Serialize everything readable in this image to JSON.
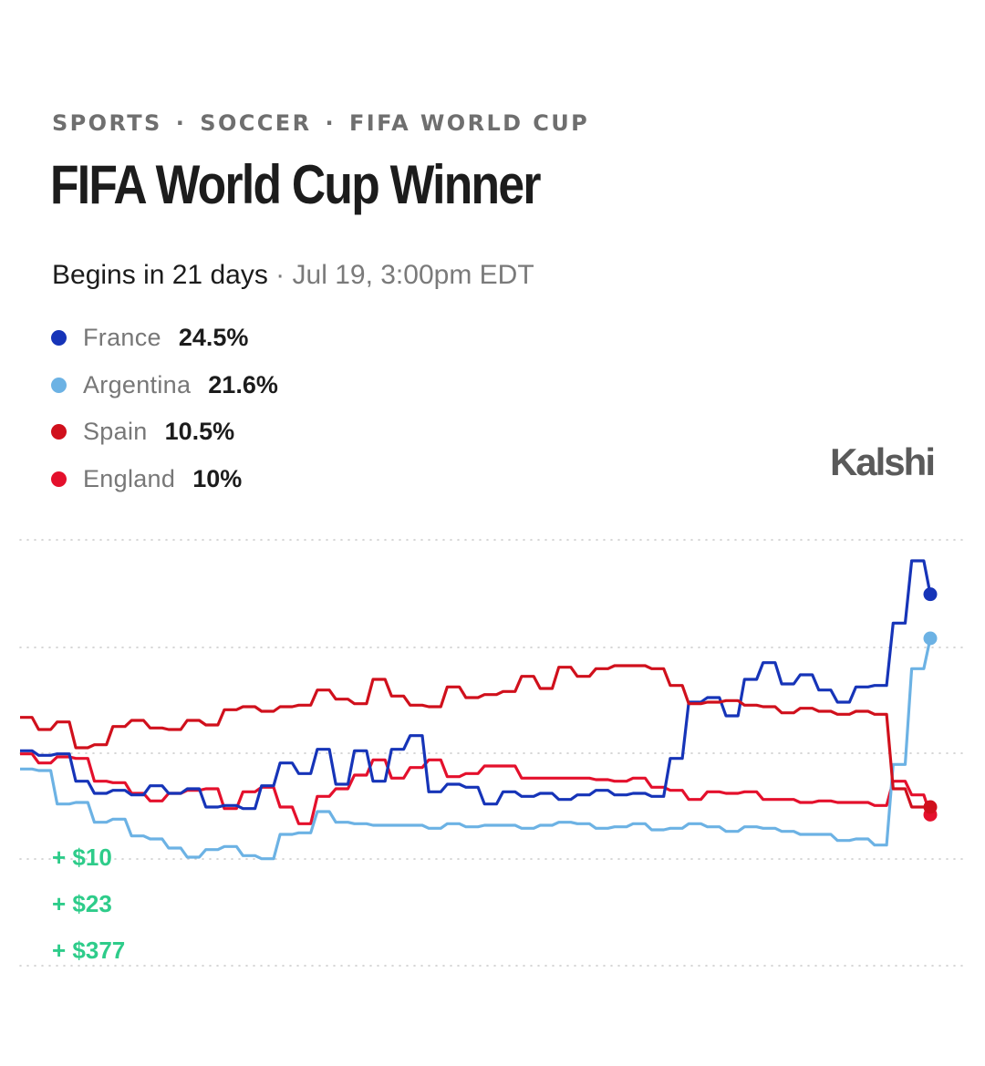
{
  "breadcrumb": [
    "SPORTS",
    "SOCCER",
    "FIFA WORLD CUP"
  ],
  "title": "FIFA World Cup Winner",
  "schedule": {
    "begins": "Begins in 21 days",
    "separator": "·",
    "date": "Jul 19, 3:00pm EDT"
  },
  "brand": "Kalshi",
  "legend": [
    {
      "name": "France",
      "value": "24.5%",
      "color": "#1634b8"
    },
    {
      "name": "Argentina",
      "value": "21.6%",
      "color": "#6cb2e4"
    },
    {
      "name": "Spain",
      "value": "10.5%",
      "color": "#d0101c"
    },
    {
      "name": "England",
      "value": "10%",
      "color": "#e4102c"
    }
  ],
  "pnl": [
    "+ $10",
    "+ $23",
    "+ $377"
  ],
  "chart_data": {
    "type": "line",
    "grid": true,
    "ylim": [
      0,
      30
    ],
    "series": [
      {
        "name": "France",
        "color": "#1634b8",
        "values": [
          14.2,
          13.9,
          14.0,
          12.2,
          11.4,
          11.6,
          11.3,
          11.9,
          11.4,
          11.7,
          10.5,
          10.6,
          10.4,
          11.9,
          13.4,
          12.7,
          14.3,
          12.0,
          14.2,
          12.2,
          14.3,
          15.2,
          11.5,
          12.0,
          11.8,
          10.7,
          11.5,
          11.2,
          11.4,
          11.0,
          11.3,
          11.6,
          11.3,
          11.4,
          11.2,
          13.7,
          17.4,
          17.7,
          16.5,
          18.9,
          20.0,
          18.6,
          19.2,
          18.2,
          17.4,
          18.4,
          18.5,
          22.6,
          26.7,
          24.5
        ]
      },
      {
        "name": "Argentina",
        "color": "#6cb2e4",
        "values": [
          13.0,
          12.9,
          10.7,
          10.8,
          9.5,
          9.7,
          8.6,
          8.4,
          7.8,
          7.2,
          7.7,
          7.9,
          7.3,
          7.1,
          8.7,
          8.8,
          10.2,
          9.5,
          9.4,
          9.3,
          9.3,
          9.3,
          9.1,
          9.4,
          9.2,
          9.3,
          9.3,
          9.1,
          9.3,
          9.5,
          9.4,
          9.1,
          9.2,
          9.4,
          9.0,
          9.1,
          9.4,
          9.2,
          8.9,
          9.2,
          9.1,
          8.9,
          8.7,
          8.7,
          8.3,
          8.4,
          8.0,
          13.3,
          19.6,
          21.6
        ]
      },
      {
        "name": "Spain",
        "color": "#d0101c",
        "values": [
          16.4,
          15.6,
          16.1,
          14.4,
          14.6,
          15.8,
          16.2,
          15.7,
          15.6,
          16.2,
          15.9,
          16.9,
          17.1,
          16.8,
          17.1,
          17.2,
          18.2,
          17.6,
          17.3,
          18.9,
          17.8,
          17.2,
          17.1,
          18.4,
          17.7,
          17.9,
          18.1,
          19.1,
          18.3,
          19.7,
          19.1,
          19.6,
          19.8,
          19.8,
          19.6,
          18.5,
          17.3,
          17.4,
          17.5,
          17.2,
          17.1,
          16.7,
          17.0,
          16.8,
          16.6,
          16.8,
          16.6,
          11.7,
          10.5,
          10.5
        ]
      },
      {
        "name": "England",
        "color": "#e4102c",
        "values": [
          14.0,
          13.4,
          13.8,
          13.7,
          12.2,
          12.1,
          11.4,
          10.9,
          11.4,
          11.6,
          11.7,
          10.4,
          11.5,
          11.8,
          10.5,
          9.4,
          11.2,
          11.7,
          12.6,
          13.6,
          12.4,
          13.1,
          13.6,
          12.5,
          12.7,
          13.2,
          13.2,
          12.4,
          12.4,
          12.4,
          12.4,
          12.3,
          12.2,
          12.4,
          11.8,
          11.6,
          11.0,
          11.5,
          11.4,
          11.5,
          11.0,
          11.0,
          10.8,
          10.9,
          10.8,
          10.8,
          10.6,
          12.2,
          11.3,
          10.0
        ]
      }
    ]
  }
}
